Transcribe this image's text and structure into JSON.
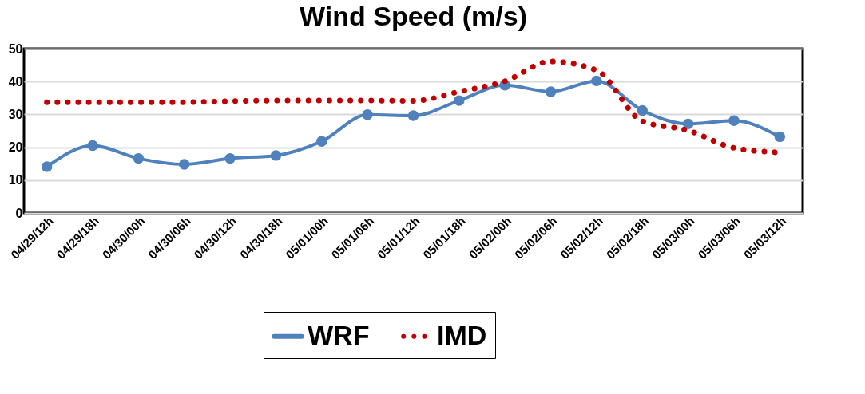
{
  "chart_data": {
    "type": "line",
    "title": "Wind Speed (m/s)",
    "categories": [
      "04/29/12h",
      "04/29/18h",
      "04/30/00h",
      "04/30/06h",
      "04/30/12h",
      "04/30/18h",
      "05/01/00h",
      "05/01/06h",
      "05/01/12h",
      "05/01/18h",
      "05/02/00h",
      "05/02/06h",
      "05/02/12h",
      "05/02/18h",
      "05/03/00h",
      "05/03/06h",
      "05/03/12h"
    ],
    "series": [
      {
        "name": "WRF",
        "color": "#4f81bd",
        "marker": "circle",
        "line_style": "solid",
        "values": [
          14.1,
          20.5,
          16.6,
          14.8,
          16.6,
          17.5,
          21.8,
          29.9,
          29.6,
          34.2,
          38.9,
          36.9,
          40.2,
          31.2,
          27.1,
          28.1,
          23.2
        ]
      },
      {
        "name": "IMD",
        "color": "#c00000",
        "marker": "none",
        "line_style": "dotted",
        "values": [
          33.7,
          33.7,
          33.7,
          33.7,
          34,
          34.2,
          34.2,
          34.2,
          34.1,
          36.9,
          40.1,
          46.1,
          43.4,
          27.9,
          25.1,
          19.8,
          18.4
        ]
      }
    ],
    "ylim": [
      0,
      50
    ],
    "yticks": [
      0,
      10,
      20,
      30,
      40,
      50
    ],
    "grid": "y",
    "legend": "bottom"
  }
}
